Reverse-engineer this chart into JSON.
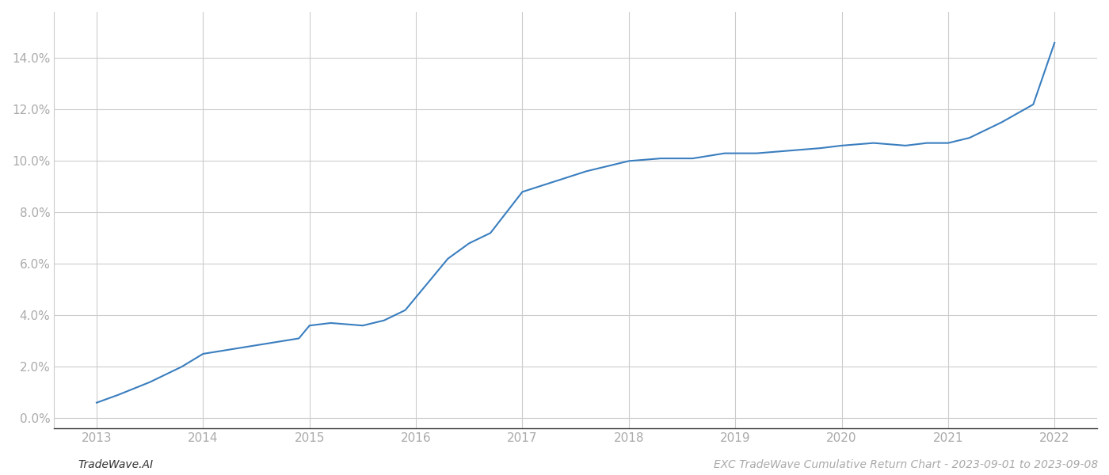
{
  "x_values": [
    2013.0,
    2013.2,
    2013.5,
    2013.8,
    2014.0,
    2014.3,
    2014.6,
    2014.9,
    2015.0,
    2015.2,
    2015.5,
    2015.7,
    2015.9,
    2016.1,
    2016.3,
    2016.5,
    2016.7,
    2017.0,
    2017.3,
    2017.6,
    2017.9,
    2018.0,
    2018.3,
    2018.6,
    2018.9,
    2019.2,
    2019.5,
    2019.8,
    2020.0,
    2020.3,
    2020.6,
    2020.8,
    2021.0,
    2021.2,
    2021.5,
    2021.8,
    2022.0
  ],
  "y_values": [
    0.006,
    0.009,
    0.014,
    0.02,
    0.025,
    0.027,
    0.029,
    0.031,
    0.036,
    0.037,
    0.036,
    0.038,
    0.042,
    0.052,
    0.062,
    0.068,
    0.072,
    0.088,
    0.092,
    0.096,
    0.099,
    0.1,
    0.101,
    0.101,
    0.103,
    0.103,
    0.104,
    0.105,
    0.106,
    0.107,
    0.106,
    0.107,
    0.107,
    0.109,
    0.115,
    0.122,
    0.146
  ],
  "line_color": "#3a7ebf",
  "line_width": 1.5,
  "background_color": "#ffffff",
  "grid_color": "#cccccc",
  "xlim": [
    2012.6,
    2022.4
  ],
  "ylim": [
    -0.004,
    0.158
  ],
  "yticks": [
    0.0,
    0.02,
    0.04,
    0.06,
    0.08,
    0.1,
    0.12,
    0.14
  ],
  "xticks": [
    2013,
    2014,
    2015,
    2016,
    2017,
    2018,
    2019,
    2020,
    2021,
    2022
  ],
  "footer_left": "TradeWave.AI",
  "footer_right": "EXC TradeWave Cumulative Return Chart - 2023-09-01 to 2023-09-08",
  "tick_label_color": "#aaaaaa",
  "tick_label_fontsize": 11,
  "footer_fontsize": 10
}
